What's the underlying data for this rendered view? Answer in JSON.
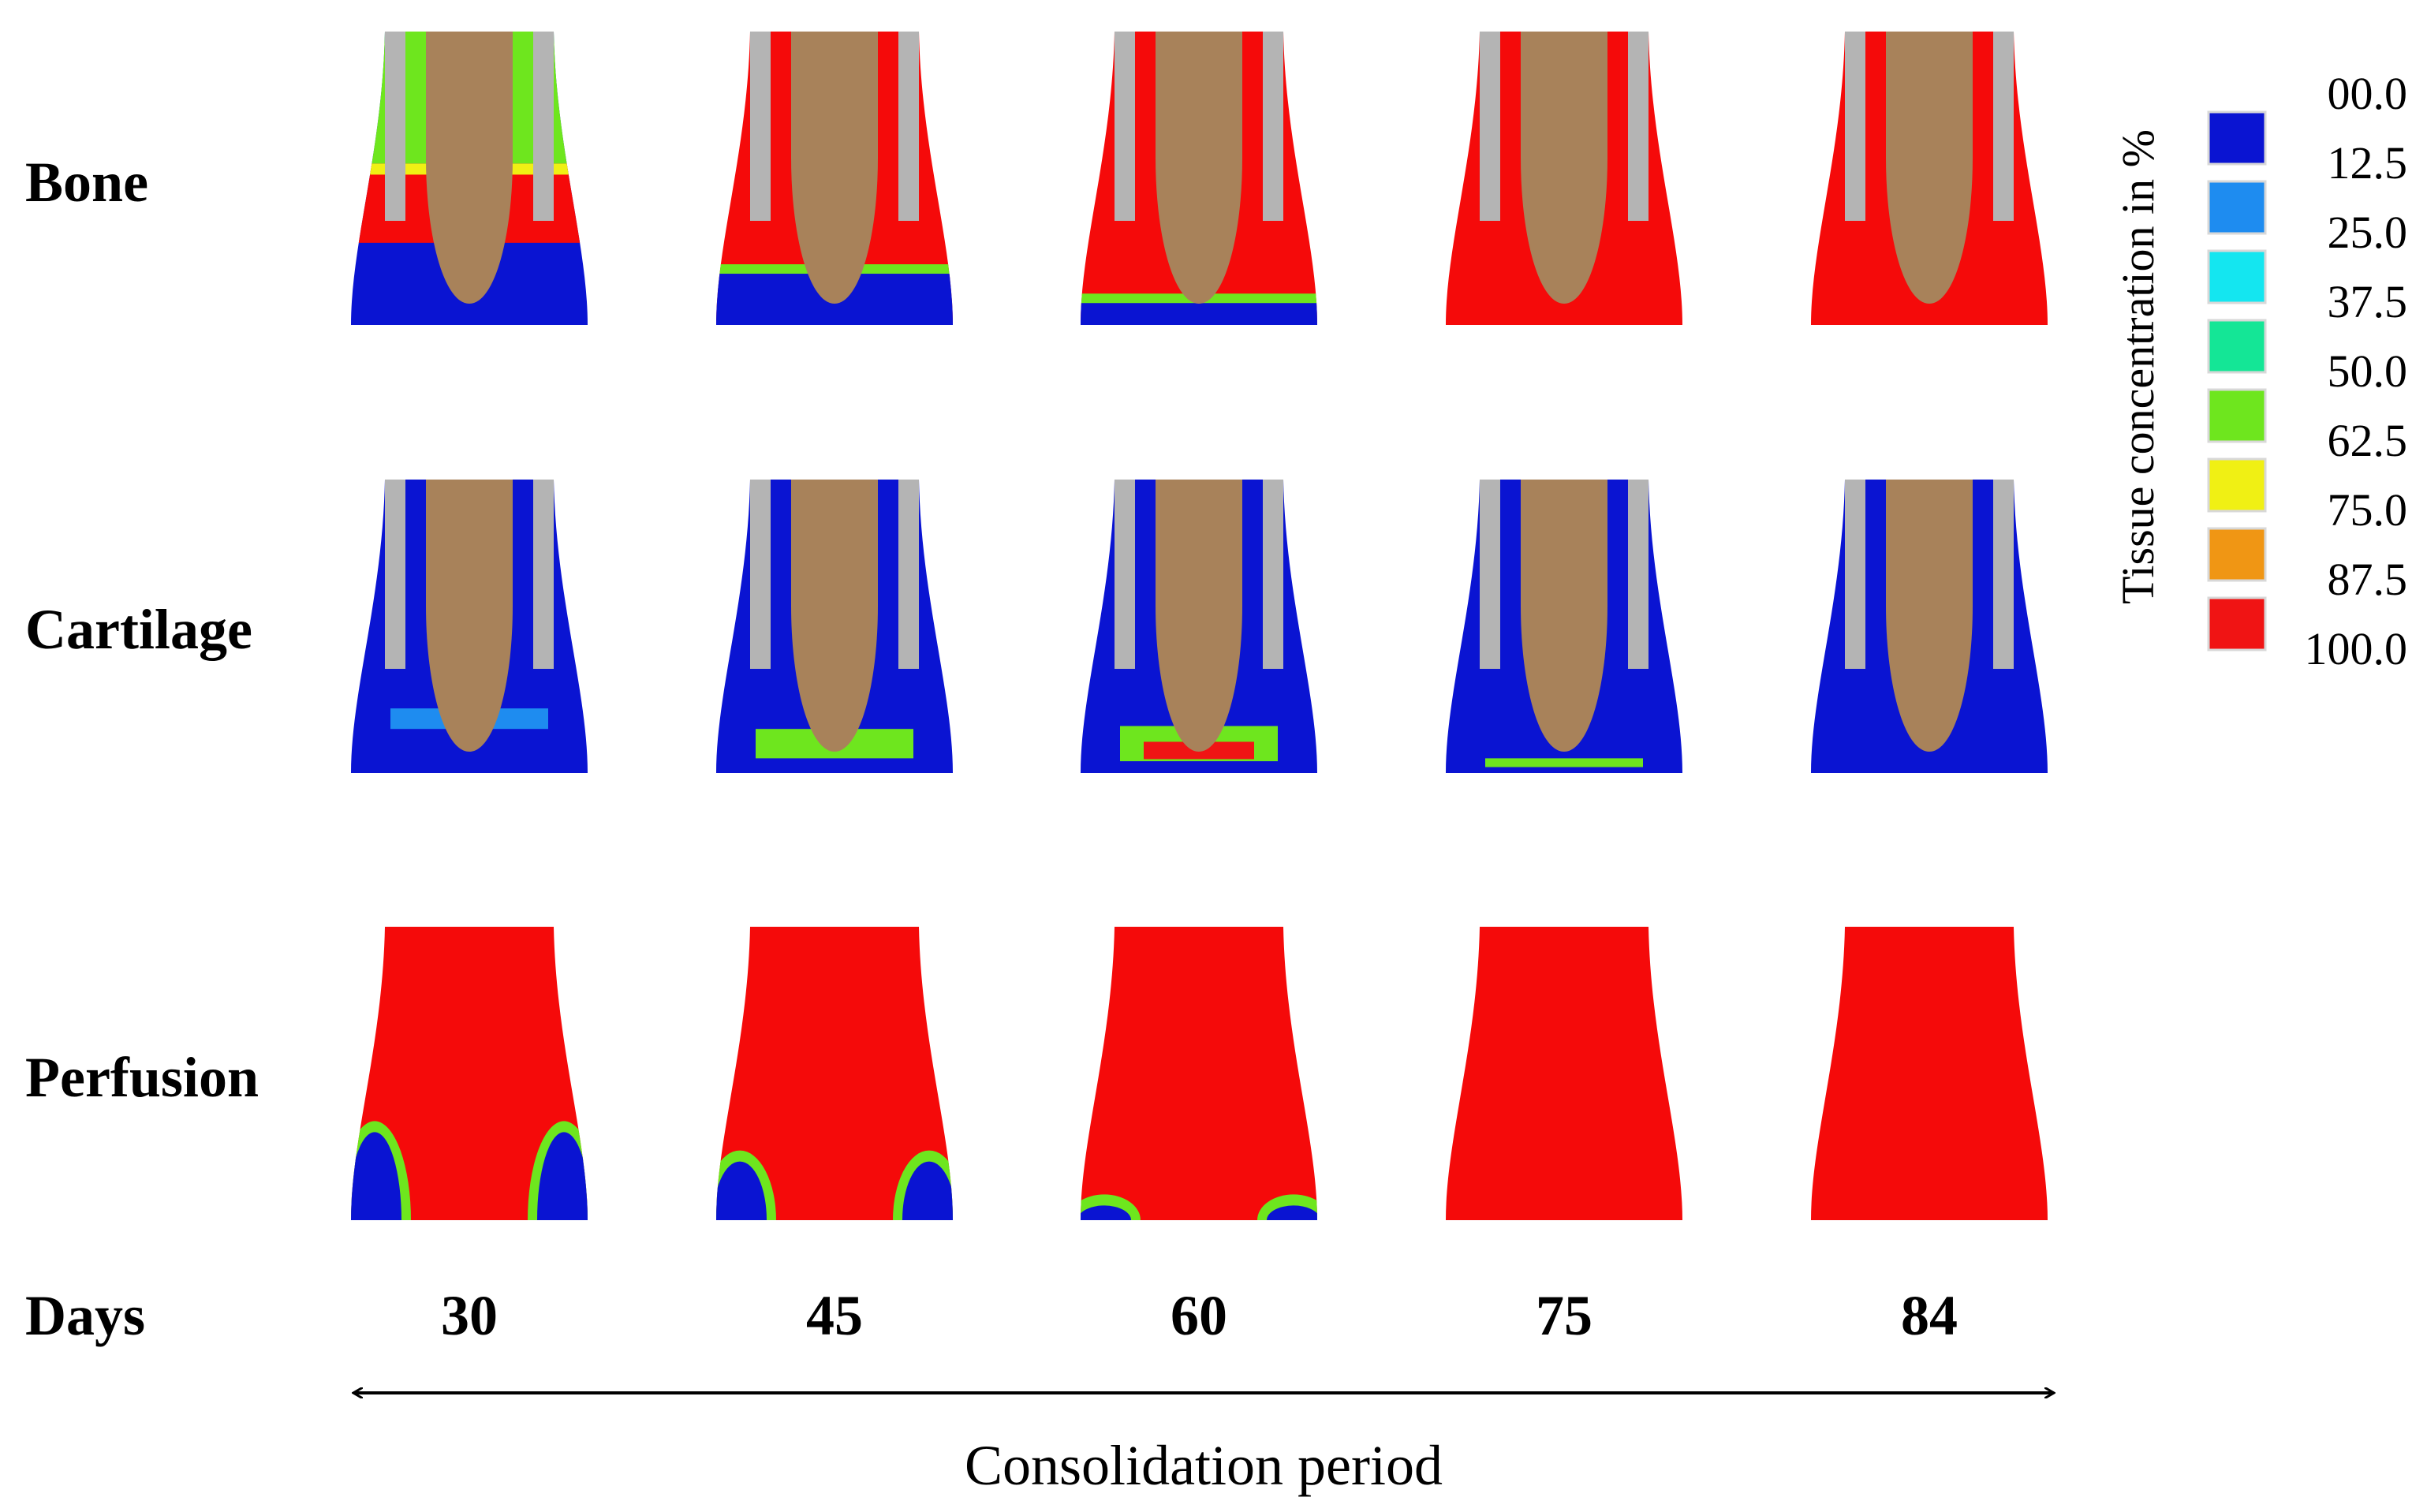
{
  "figure": {
    "rows": [
      {
        "key": "bone",
        "label": "Bone"
      },
      {
        "key": "cartilage",
        "label": "Cartilage"
      },
      {
        "key": "perfusion",
        "label": "Perfusion"
      }
    ],
    "days_label": "Days",
    "days": [
      "30",
      "45",
      "60",
      "75",
      "84"
    ],
    "axis_caption": "Consolidation period"
  },
  "legend": {
    "title": "Tissue concentration in %",
    "ticks": [
      "00.0",
      "12.5",
      "25.0",
      "37.5",
      "50.0",
      "62.5",
      "75.0",
      "87.5",
      "100.0"
    ],
    "colors": [
      "#0a14d2",
      "#1e8cf0",
      "#14e6f0",
      "#14e696",
      "#6ee61e",
      "#f0f014",
      "#f09614",
      "#f01414"
    ]
  },
  "colors": {
    "implant": "#a8825a",
    "fixator": "#b4b4b4",
    "high_concentration": "#f50a0a",
    "low_concentration": "#0a14d2"
  }
}
